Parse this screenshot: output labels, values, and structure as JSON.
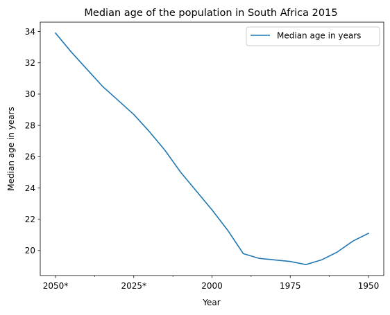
{
  "chart_data": {
    "type": "line",
    "title": "Median age of the population in South Africa 2015",
    "xlabel": "Year",
    "ylabel": "Median age in years",
    "x": [
      "2050*",
      "2045*",
      "2040*",
      "2035*",
      "2030*",
      "2025*",
      "2020*",
      "2015",
      "2010",
      "2005",
      "2000",
      "1995",
      "1990",
      "1985",
      "1980",
      "1975",
      "1970",
      "1965",
      "1960",
      "1955",
      "1950"
    ],
    "x_tick_labels": [
      "2050*",
      "2025*",
      "2000",
      "1975",
      "1950"
    ],
    "series": [
      {
        "name": "Median age in years",
        "color": "#1f77b4",
        "values": [
          33.9,
          32.7,
          31.6,
          30.5,
          29.6,
          28.7,
          27.6,
          26.4,
          25.0,
          23.8,
          22.6,
          21.3,
          19.8,
          19.5,
          19.4,
          19.3,
          19.1,
          19.4,
          19.9,
          20.6,
          21.1
        ]
      }
    ],
    "ylim": [
      18.4,
      34.6
    ],
    "y_ticks": [
      20,
      22,
      24,
      26,
      28,
      30,
      32,
      34
    ],
    "legend_position": "top-right",
    "grid": false
  }
}
